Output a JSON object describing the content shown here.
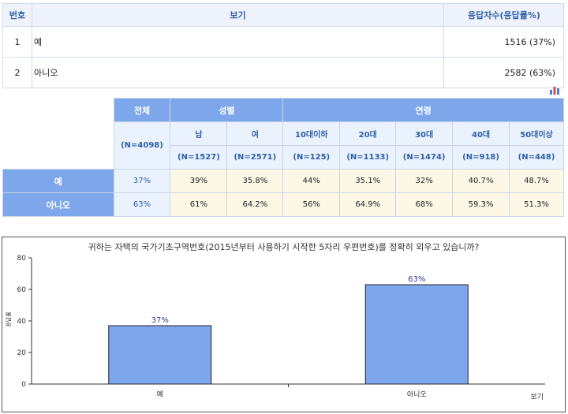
{
  "answers_table": {
    "headers": {
      "no": "번호",
      "option": "보기",
      "responses": "응답자수(응답률%)"
    },
    "rows": [
      {
        "no": "1",
        "option": "예",
        "responses": "1516 (37%)"
      },
      {
        "no": "2",
        "option": "아니오",
        "responses": "2582 (63%)"
      }
    ]
  },
  "chart_icon": "bar-chart-icon",
  "crosstab": {
    "groups": {
      "total": "전체",
      "gender": "성별",
      "age": "연령"
    },
    "columns": [
      "남",
      "여",
      "10대이하",
      "20대",
      "30대",
      "40대",
      "50대이상"
    ],
    "total_n": "(N=4098)",
    "column_n": [
      "(N=1527)",
      "(N=2571)",
      "(N=125)",
      "(N=1133)",
      "(N=1474)",
      "(N=918)",
      "(N=448)"
    ],
    "rows": [
      {
        "label": "예",
        "total": "37%",
        "values": [
          "39%",
          "35.8%",
          "44%",
          "35.1%",
          "32%",
          "40.7%",
          "48.7%"
        ]
      },
      {
        "label": "아니오",
        "total": "63%",
        "values": [
          "61%",
          "64.2%",
          "56%",
          "64.9%",
          "68%",
          "59.3%",
          "51.3%"
        ]
      }
    ]
  },
  "chart_data": {
    "type": "bar",
    "title": "귀하는 자택의 국가기초구역번호(2015년부터 사용하기 시작한 5자리 우편번호)를 정확히 외우고 있습니까?",
    "categories": [
      "예",
      "아니오"
    ],
    "values": [
      37,
      63
    ],
    "value_labels": [
      "37%",
      "63%"
    ],
    "ylabel": "응답률",
    "xlabel": "보기",
    "ylim": [
      0,
      80
    ],
    "yticks": [
      "0",
      "20",
      "40",
      "60",
      "80"
    ],
    "bar_color": "#7ea6ea",
    "grid": false
  }
}
